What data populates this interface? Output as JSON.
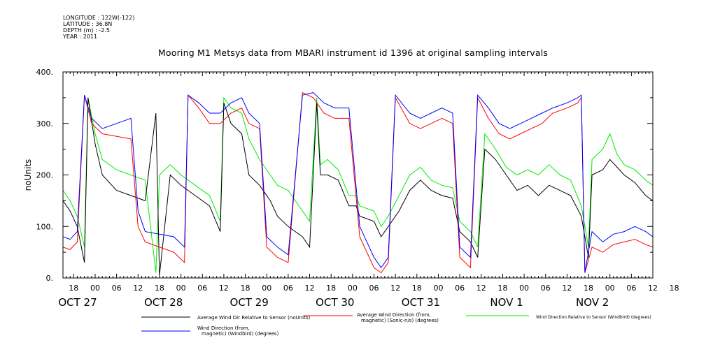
{
  "header": {
    "longitude": "LONGITUDE : 122W(-122)",
    "latitude": "LATITUDE : 36.8N",
    "depth": "DEPTH (m) : -2.5",
    "year": "YEAR : 2011",
    "title": "Mooring M1 Metsys data from MBARI instrument id 1396 at original sampling intervals"
  },
  "chart_data": {
    "type": "line",
    "title": "Mooring M1 Metsys data from MBARI instrument id 1396 at original sampling intervals",
    "ylabel": "noUnits",
    "xlabel": "",
    "ylim": [
      0,
      400
    ],
    "y_ticks": [
      "0.",
      "100.",
      "200.",
      "300.",
      "400."
    ],
    "y_tick_values": [
      0,
      100,
      200,
      300,
      400
    ],
    "x_hour_labels": [
      "18",
      "00",
      "06",
      "12",
      "18",
      "00",
      "06",
      "12",
      "18",
      "00",
      "06",
      "12",
      "18",
      "00",
      "06",
      "12",
      "18",
      "00",
      "06",
      "12",
      "18",
      "00",
      "06",
      "12",
      "18",
      "00",
      "06",
      "12",
      "18"
    ],
    "x_day_labels": [
      "OCT 27",
      "OCT 28",
      "OCT 29",
      "OCT 30",
      "OCT 31",
      "NOV 1",
      "NOV 2"
    ],
    "x_range_hours": [
      -3,
      162
    ],
    "colors": {
      "black": "#000000",
      "red": "#ff0000",
      "green": "#00ee00",
      "blue": "#0000ff"
    },
    "series": [
      {
        "name": "Average Wind Dir Relative to Sensor (noUnits)",
        "color": "#000000",
        "points": [
          [
            -3,
            150
          ],
          [
            -1,
            130
          ],
          [
            1,
            100
          ],
          [
            3,
            30
          ],
          [
            4,
            350
          ],
          [
            6,
            260
          ],
          [
            8,
            200
          ],
          [
            12,
            170
          ],
          [
            16,
            160
          ],
          [
            20,
            150
          ],
          [
            23,
            320
          ],
          [
            24,
            5
          ],
          [
            27,
            200
          ],
          [
            30,
            180
          ],
          [
            34,
            160
          ],
          [
            38,
            140
          ],
          [
            41,
            90
          ],
          [
            42,
            340
          ],
          [
            44,
            300
          ],
          [
            47,
            280
          ],
          [
            49,
            200
          ],
          [
            52,
            180
          ],
          [
            55,
            150
          ],
          [
            57,
            120
          ],
          [
            60,
            100
          ],
          [
            62,
            90
          ],
          [
            64,
            80
          ],
          [
            66,
            60
          ],
          [
            68,
            340
          ],
          [
            69,
            200
          ],
          [
            71,
            200
          ],
          [
            74,
            190
          ],
          [
            77,
            140
          ],
          [
            79,
            140
          ],
          [
            80,
            120
          ],
          [
            84,
            110
          ],
          [
            86,
            80
          ],
          [
            88,
            100
          ],
          [
            91,
            130
          ],
          [
            94,
            170
          ],
          [
            97,
            190
          ],
          [
            100,
            170
          ],
          [
            103,
            160
          ],
          [
            106,
            155
          ],
          [
            108,
            90
          ],
          [
            111,
            70
          ],
          [
            113,
            40
          ],
          [
            115,
            250
          ],
          [
            118,
            230
          ],
          [
            121,
            200
          ],
          [
            124,
            170
          ],
          [
            127,
            180
          ],
          [
            130,
            160
          ],
          [
            133,
            180
          ],
          [
            136,
            170
          ],
          [
            139,
            160
          ],
          [
            142,
            120
          ],
          [
            144,
            40
          ],
          [
            145,
            200
          ],
          [
            148,
            210
          ],
          [
            150,
            230
          ],
          [
            152,
            215
          ],
          [
            154,
            200
          ],
          [
            157,
            185
          ],
          [
            160,
            160
          ],
          [
            162,
            150
          ]
        ]
      },
      {
        "name": "Average Wind Direction (from, magnetic) (Sonic-n/s) (degrees)",
        "color": "#ff0000",
        "points": [
          [
            -3,
            60
          ],
          [
            -1,
            55
          ],
          [
            1,
            70
          ],
          [
            3,
            355
          ],
          [
            5,
            300
          ],
          [
            8,
            280
          ],
          [
            12,
            275
          ],
          [
            16,
            270
          ],
          [
            18,
            100
          ],
          [
            20,
            70
          ],
          [
            24,
            60
          ],
          [
            28,
            50
          ],
          [
            31,
            30
          ],
          [
            32,
            355
          ],
          [
            35,
            330
          ],
          [
            38,
            300
          ],
          [
            41,
            300
          ],
          [
            44,
            320
          ],
          [
            47,
            330
          ],
          [
            49,
            300
          ],
          [
            52,
            290
          ],
          [
            54,
            60
          ],
          [
            57,
            40
          ],
          [
            60,
            30
          ],
          [
            64,
            360
          ],
          [
            67,
            350
          ],
          [
            70,
            320
          ],
          [
            73,
            310
          ],
          [
            77,
            310
          ],
          [
            80,
            80
          ],
          [
            84,
            20
          ],
          [
            86,
            10
          ],
          [
            88,
            30
          ],
          [
            90,
            350
          ],
          [
            94,
            300
          ],
          [
            97,
            290
          ],
          [
            100,
            300
          ],
          [
            103,
            310
          ],
          [
            106,
            300
          ],
          [
            108,
            40
          ],
          [
            111,
            20
          ],
          [
            113,
            350
          ],
          [
            116,
            310
          ],
          [
            119,
            280
          ],
          [
            122,
            270
          ],
          [
            125,
            280
          ],
          [
            128,
            290
          ],
          [
            131,
            300
          ],
          [
            134,
            320
          ],
          [
            138,
            330
          ],
          [
            141,
            340
          ],
          [
            142,
            350
          ],
          [
            143,
            10
          ],
          [
            145,
            60
          ],
          [
            148,
            50
          ],
          [
            151,
            65
          ],
          [
            154,
            70
          ],
          [
            157,
            75
          ],
          [
            160,
            65
          ],
          [
            162,
            60
          ]
        ]
      },
      {
        "name": "Wind Direction Relative to Sensor (Windbird) (degrees)",
        "color": "#00ee00",
        "points": [
          [
            -3,
            170
          ],
          [
            -1,
            150
          ],
          [
            1,
            120
          ],
          [
            3,
            60
          ],
          [
            4,
            350
          ],
          [
            6,
            280
          ],
          [
            8,
            230
          ],
          [
            12,
            210
          ],
          [
            16,
            200
          ],
          [
            20,
            190
          ],
          [
            23,
            10
          ],
          [
            24,
            200
          ],
          [
            27,
            220
          ],
          [
            30,
            200
          ],
          [
            34,
            180
          ],
          [
            38,
            160
          ],
          [
            41,
            110
          ],
          [
            42,
            350
          ],
          [
            44,
            330
          ],
          [
            47,
            320
          ],
          [
            49,
            270
          ],
          [
            52,
            230
          ],
          [
            55,
            200
          ],
          [
            57,
            180
          ],
          [
            60,
            170
          ],
          [
            62,
            150
          ],
          [
            64,
            130
          ],
          [
            66,
            110
          ],
          [
            68,
            350
          ],
          [
            69,
            220
          ],
          [
            71,
            230
          ],
          [
            74,
            210
          ],
          [
            77,
            160
          ],
          [
            79,
            160
          ],
          [
            80,
            140
          ],
          [
            84,
            130
          ],
          [
            86,
            100
          ],
          [
            88,
            120
          ],
          [
            91,
            160
          ],
          [
            94,
            200
          ],
          [
            97,
            215
          ],
          [
            100,
            190
          ],
          [
            103,
            180
          ],
          [
            106,
            175
          ],
          [
            108,
            110
          ],
          [
            111,
            90
          ],
          [
            113,
            60
          ],
          [
            115,
            280
          ],
          [
            118,
            250
          ],
          [
            121,
            215
          ],
          [
            124,
            200
          ],
          [
            127,
            210
          ],
          [
            130,
            200
          ],
          [
            133,
            220
          ],
          [
            136,
            200
          ],
          [
            139,
            190
          ],
          [
            142,
            140
          ],
          [
            144,
            60
          ],
          [
            145,
            230
          ],
          [
            148,
            250
          ],
          [
            150,
            280
          ],
          [
            152,
            240
          ],
          [
            154,
            220
          ],
          [
            157,
            210
          ],
          [
            160,
            190
          ],
          [
            162,
            180
          ]
        ]
      },
      {
        "name": "Wind Direction (from, magnetic) (Windbird) (degrees)",
        "color": "#0000ff",
        "points": [
          [
            -3,
            80
          ],
          [
            -1,
            75
          ],
          [
            1,
            90
          ],
          [
            3,
            355
          ],
          [
            5,
            310
          ],
          [
            8,
            290
          ],
          [
            12,
            300
          ],
          [
            16,
            310
          ],
          [
            18,
            130
          ],
          [
            20,
            90
          ],
          [
            24,
            85
          ],
          [
            28,
            80
          ],
          [
            31,
            60
          ],
          [
            32,
            355
          ],
          [
            35,
            340
          ],
          [
            38,
            320
          ],
          [
            41,
            320
          ],
          [
            44,
            340
          ],
          [
            47,
            350
          ],
          [
            49,
            320
          ],
          [
            52,
            300
          ],
          [
            54,
            80
          ],
          [
            57,
            60
          ],
          [
            60,
            45
          ],
          [
            64,
            355
          ],
          [
            67,
            360
          ],
          [
            70,
            340
          ],
          [
            73,
            330
          ],
          [
            77,
            330
          ],
          [
            80,
            100
          ],
          [
            84,
            40
          ],
          [
            86,
            20
          ],
          [
            88,
            40
          ],
          [
            90,
            355
          ],
          [
            94,
            320
          ],
          [
            97,
            310
          ],
          [
            100,
            320
          ],
          [
            103,
            330
          ],
          [
            106,
            320
          ],
          [
            108,
            60
          ],
          [
            111,
            40
          ],
          [
            113,
            355
          ],
          [
            116,
            330
          ],
          [
            119,
            300
          ],
          [
            122,
            290
          ],
          [
            125,
            300
          ],
          [
            128,
            310
          ],
          [
            131,
            320
          ],
          [
            134,
            330
          ],
          [
            138,
            340
          ],
          [
            141,
            350
          ],
          [
            142,
            355
          ],
          [
            143,
            10
          ],
          [
            145,
            90
          ],
          [
            148,
            70
          ],
          [
            151,
            85
          ],
          [
            154,
            90
          ],
          [
            157,
            100
          ],
          [
            160,
            90
          ],
          [
            162,
            80
          ]
        ]
      }
    ],
    "legend": [
      {
        "label_lines": [
          "Average Wind Dir Relative to Sensor (noUnits)"
        ],
        "color": "#000000"
      },
      {
        "label_lines": [
          "Average Wind Direction (from,",
          "magnetic) (Sonic-n/s) (degrees)"
        ],
        "color": "#ff0000"
      },
      {
        "label_lines": [
          "Wind Direction Relative to Sensor (Windbird) (degrees)"
        ],
        "color": "#00ee00"
      },
      {
        "label_lines": [
          "Wind Direction (from,",
          "magnetic) (Windbird) (degrees)"
        ],
        "color": "#0000ff"
      }
    ]
  }
}
